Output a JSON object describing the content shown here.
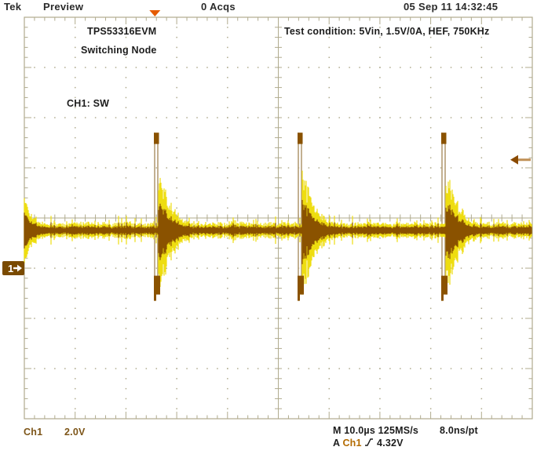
{
  "header": {
    "brand": "Tek",
    "status": "Preview",
    "acquisitions": "0 Acqs",
    "datetime": "05 Sep 11 14:32:45"
  },
  "annotations": {
    "device": "TPS53316EVM",
    "signal": "Switching Node",
    "channel_label": "CH1: SW",
    "test_condition": "Test condition: 5Vin, 1.5V/0A, HEF, 750KHz"
  },
  "readouts": {
    "channel": "Ch1",
    "scale": "2.0V",
    "timebase": "M 10.0µs 125MS/s",
    "resolution": "8.0ns/pt",
    "trigger_mode": "A",
    "trigger_source": "Ch1",
    "trigger_level": "4.32V"
  },
  "markers": {
    "channel_number": "1"
  },
  "colors": {
    "background": "#ffffff",
    "graticule": "#b0ab8e",
    "trace_core": "#8a5200",
    "trace_bright": "#eedd10",
    "trace_faint": "#b49d76",
    "channel": "#7a4a00",
    "accent_orange": "#e55b00",
    "arrow_head": "#8a4a00",
    "arrow_shaft": "#c09055",
    "text": "#1c1c1c"
  },
  "chart_data": {
    "type": "line",
    "subtype": "oscilloscope-trace",
    "title": "TPS53316EVM Switching Node",
    "channel": "Ch1",
    "volts_per_div": 2.0,
    "time_per_div_us": 10.0,
    "sample_rate": "125MS/s",
    "resolution_per_point": "8.0ns/pt",
    "divisions": {
      "horizontal": 10,
      "vertical": 8
    },
    "ground_ref_div_below_center": 1,
    "baseline_v": 1.5,
    "pulse_top_v": 5.4,
    "pulse_bottom_v": -1.3,
    "ring_amplitude_v": 2.1,
    "ring_decay_us": 3.0,
    "noise_band_v": 0.27,
    "pulse_times_us": [
      -24.3,
      3.9,
      32.2
    ],
    "left_edge_ring_amplitude_v": 1.15,
    "trigger_level_v": 4.32,
    "trigger_position_us": -24.3,
    "trigger_slope": "rising",
    "legend_position": "none",
    "grid": "dotted-divisions-with-center-cross"
  }
}
